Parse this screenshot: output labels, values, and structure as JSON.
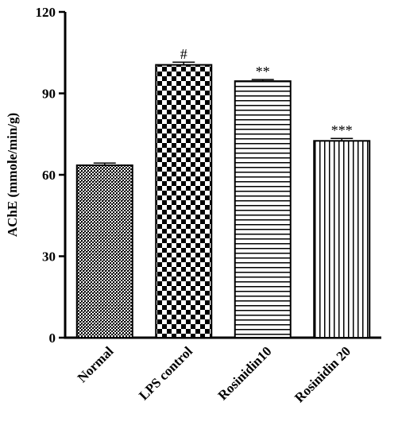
{
  "chart_data": {
    "type": "bar",
    "title": "",
    "ylabel": "AChE (mmole/min/g)",
    "xlabel": "",
    "categories": [
      "Normal",
      "LPS control",
      "Rosinidin10",
      "Rosinidin 20"
    ],
    "values": [
      63.5,
      100.5,
      94.5,
      72.5
    ],
    "errors": [
      0.8,
      1.0,
      0.6,
      0.9
    ],
    "significance": [
      "",
      "#",
      "**",
      "***"
    ],
    "patterns": [
      "fine-dots",
      "checkerboard",
      "horizontal-lines",
      "vertical-lines"
    ],
    "ylim": [
      0,
      120
    ],
    "yticks": [
      "0",
      "30",
      "60",
      "90",
      "120"
    ],
    "grid": false,
    "legend": "none"
  }
}
